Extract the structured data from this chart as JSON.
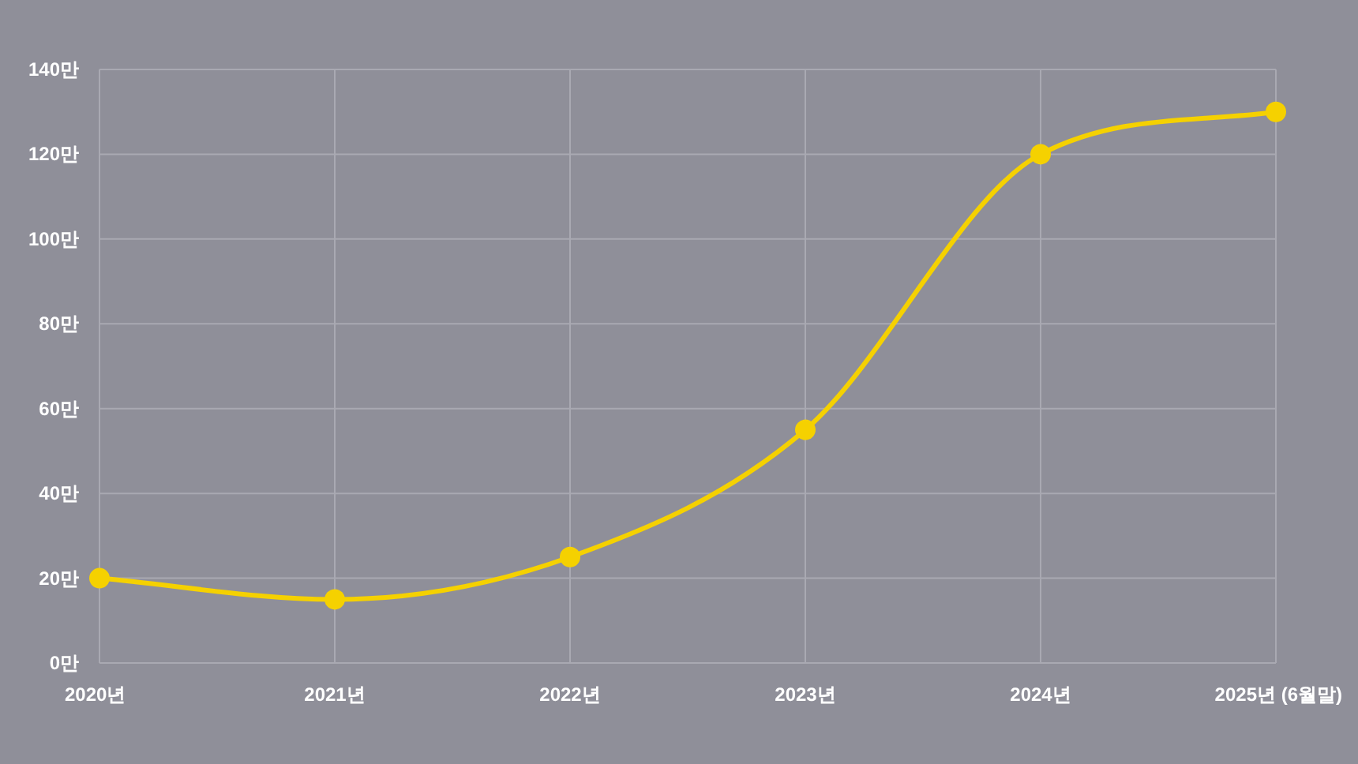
{
  "chart_data": {
    "type": "line",
    "categories": [
      "2020년",
      "2021년",
      "2022년",
      "2023년",
      "2024년",
      "2025년 (6월말)"
    ],
    "series": [
      {
        "color": "#f5d100",
        "values": [
          20,
          15,
          25,
          55,
          120,
          130
        ]
      }
    ],
    "ylim": [
      0,
      140
    ],
    "yticks": [
      {
        "value": 0,
        "label": "0만"
      },
      {
        "value": 20,
        "label": "20만"
      },
      {
        "value": 40,
        "label": "40만"
      },
      {
        "value": 60,
        "label": "60만"
      },
      {
        "value": 80,
        "label": "80만"
      },
      {
        "value": 100,
        "label": "100만"
      },
      {
        "value": 120,
        "label": "120만"
      },
      {
        "value": 140,
        "label": "140만"
      }
    ],
    "grid": true,
    "marker": "circle",
    "line_style": "solid"
  }
}
